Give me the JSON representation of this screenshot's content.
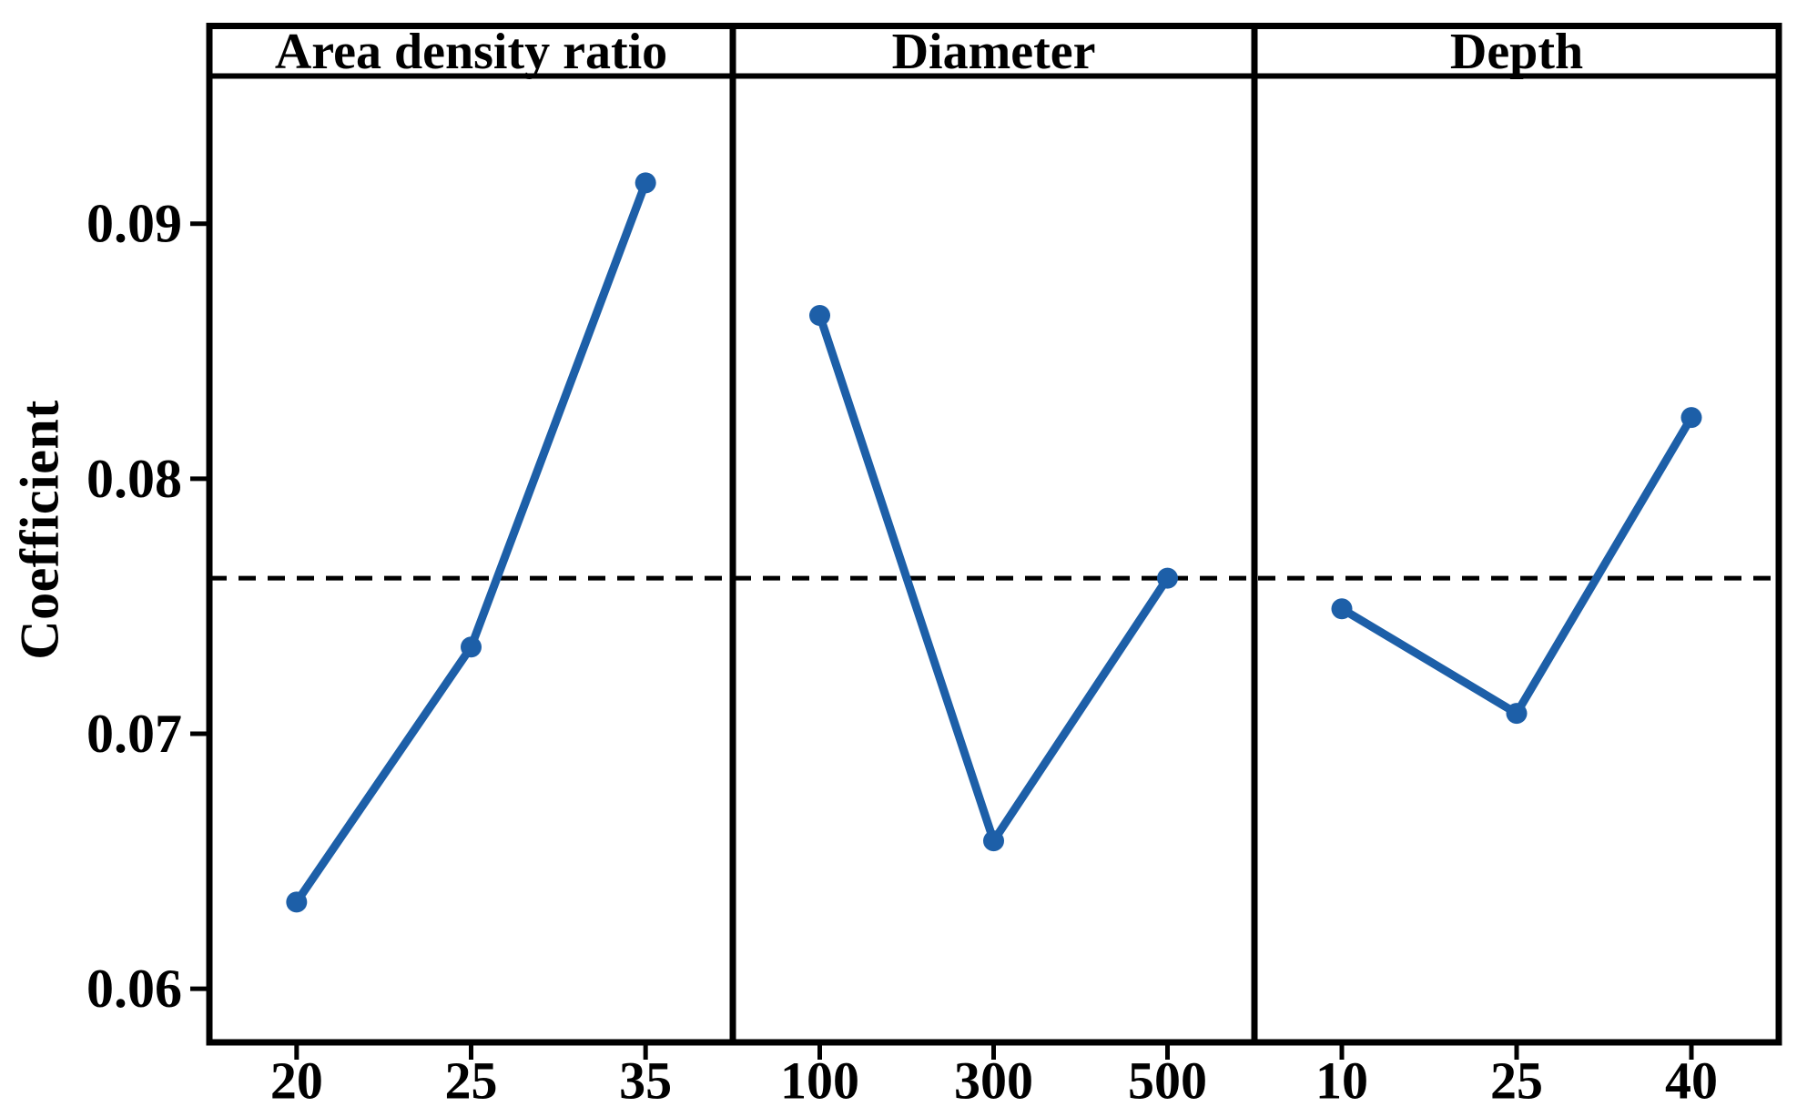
{
  "chart_data": {
    "type": "line",
    "subtype": "main-effects-panel-plot",
    "title": "",
    "ylabel": "Coefficient",
    "xlabel": "",
    "ylim": [
      0.0579,
      0.0957
    ],
    "yticks": [
      {
        "value": 0.06,
        "label": "0.06"
      },
      {
        "value": 0.07,
        "label": "0.07"
      },
      {
        "value": 0.08,
        "label": "0.08"
      },
      {
        "value": 0.09,
        "label": "0.09"
      }
    ],
    "grid": false,
    "legend_position": "none",
    "reference_line": {
      "value": 0.0761,
      "style": "dashed",
      "color": "#000000"
    },
    "panels": [
      {
        "header": "Area density ratio",
        "categories": [
          "20",
          "25",
          "35"
        ],
        "values": [
          0.0634,
          0.0734,
          0.0916
        ]
      },
      {
        "header": "Diameter",
        "categories": [
          "100",
          "300",
          "500"
        ],
        "values": [
          0.0864,
          0.0658,
          0.0761
        ]
      },
      {
        "header": "Depth",
        "categories": [
          "10",
          "25",
          "40"
        ],
        "values": [
          0.0749,
          0.0708,
          0.0824
        ]
      }
    ],
    "colors": {
      "series": "#1d5fa8",
      "axis": "#000000",
      "text": "#000000",
      "background": "#ffffff"
    },
    "marker": "circle"
  }
}
